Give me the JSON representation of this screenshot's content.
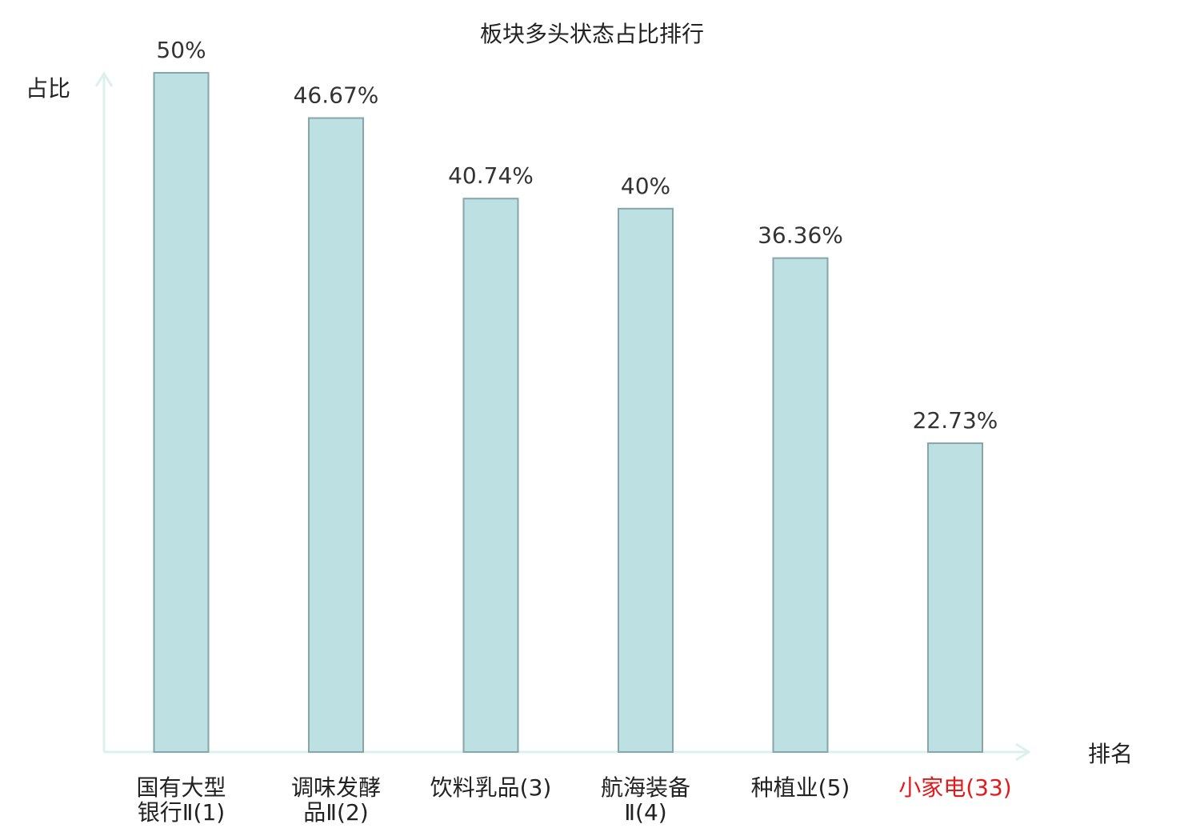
{
  "chart_data": {
    "type": "bar",
    "title": "板块多头状态占比排行",
    "ylabel": "占比",
    "xlabel": "排名",
    "ylim": [
      0,
      50
    ],
    "grid": false,
    "categories": [
      {
        "lines": [
          "国有大型",
          "银行Ⅱ(1)"
        ]
      },
      {
        "lines": [
          "调味发酵",
          "品Ⅱ(2)"
        ]
      },
      {
        "lines": [
          "饮料乳品(3)"
        ]
      },
      {
        "lines": [
          "航海装备",
          "Ⅱ(4)"
        ]
      },
      {
        "lines": [
          "种植业(5)"
        ]
      },
      {
        "lines": [
          "小家电(33)"
        ]
      }
    ],
    "values": [
      50,
      46.67,
      40.74,
      40,
      36.36,
      22.73
    ],
    "value_labels": [
      "50%",
      "46.67%",
      "40.74%",
      "40%",
      "36.36%",
      "22.73%"
    ],
    "highlight_index": 5,
    "colors": {
      "bar_fill": "#bde0e3",
      "bar_stroke": "#86a6a9",
      "axis": "#dcf0ee",
      "highlight": "#e31a1c"
    }
  }
}
